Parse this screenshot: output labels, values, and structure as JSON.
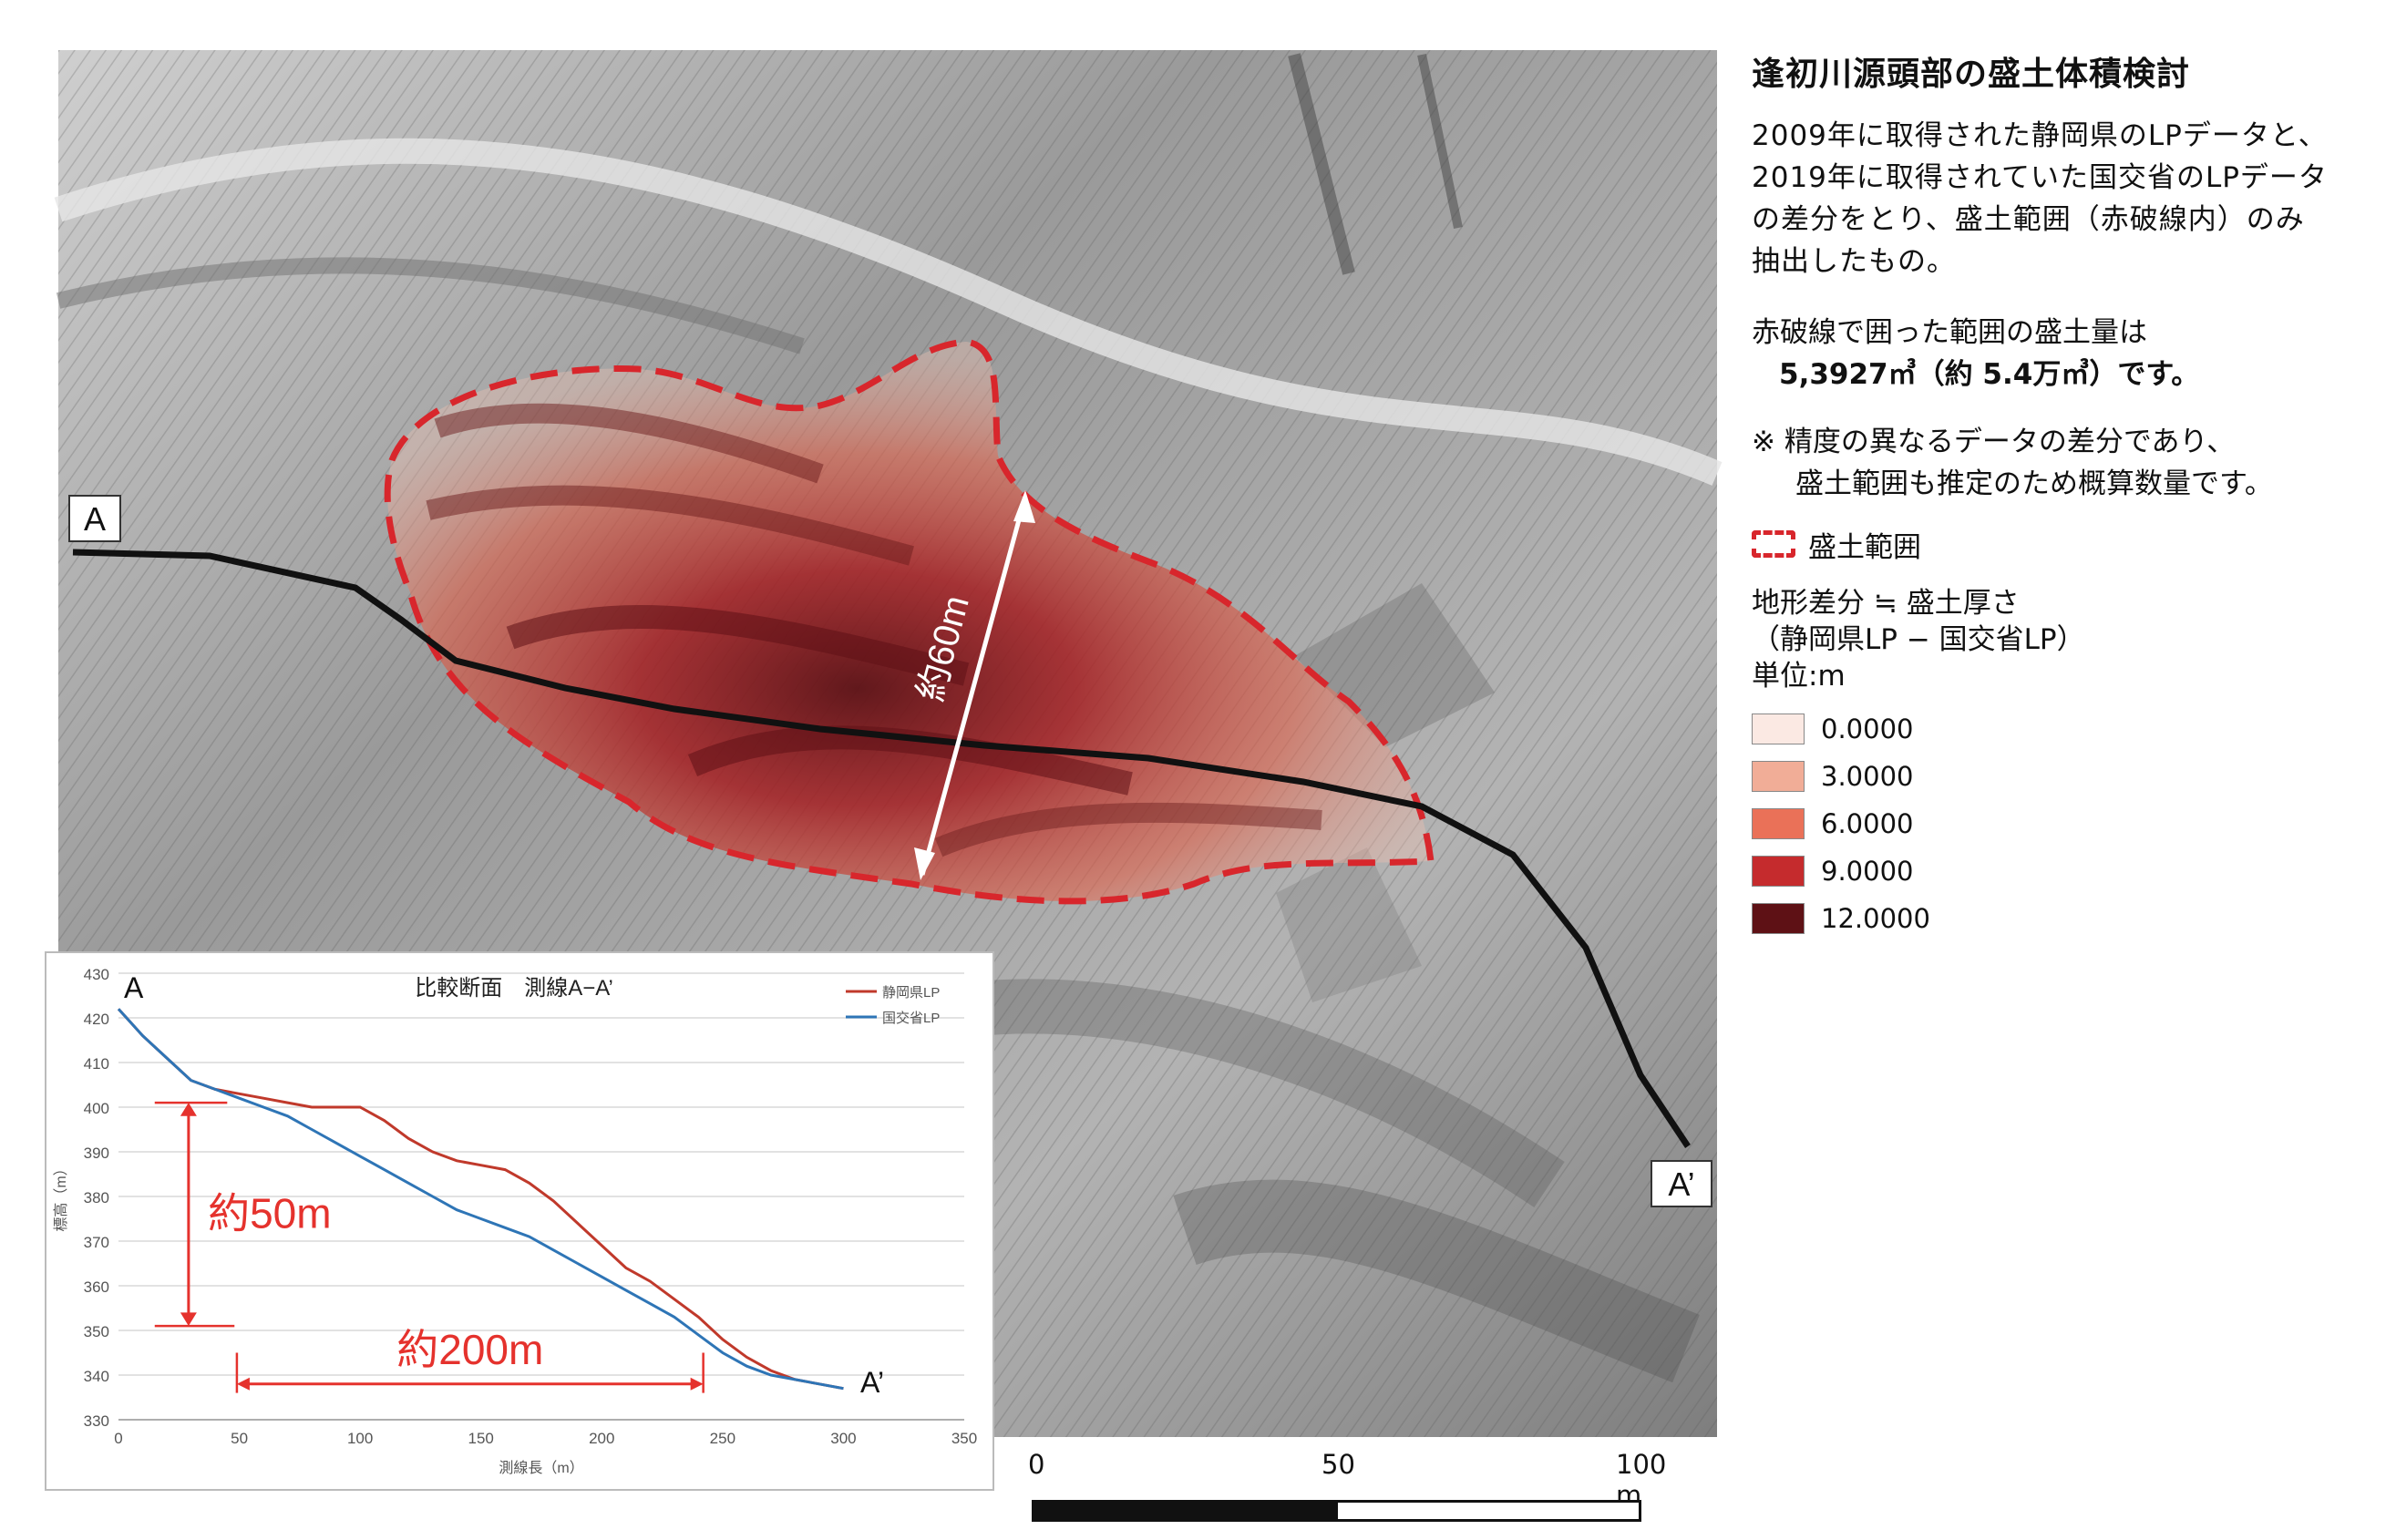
{
  "map": {
    "label_a": "A",
    "label_a_prime": "A’",
    "width_annotation": "約60m",
    "colors": {
      "extent_line": "#d8262c",
      "profile_line": "#111111"
    }
  },
  "info": {
    "title": "逢初川源頭部の盛土体積検討",
    "description_lines": [
      "2009年に取得された静岡県のLPデータと、",
      "2019年に取得されていた国交省のLPデータ",
      "の差分をとり、盛土範囲（赤破線内）のみ",
      "抽出したもの。"
    ],
    "volume_text": "赤破線で囲った範囲の盛土量は",
    "volume_value": "5,3927㎥（約 5.4万㎥）です。",
    "note_line1": "※ 精度の異なるデータの差分であり、",
    "note_line2": "盛土範囲も推定のため概算数量です。"
  },
  "legend": {
    "extent_label": "盛土範囲",
    "heading_line1": "地形差分 ≒ 盛土厚さ",
    "heading_line2": "（静岡県LP − 国交省LP）",
    "unit": "単位:m",
    "classes": [
      {
        "value": "0.0000",
        "color": "#fbe9e3"
      },
      {
        "value": "3.0000",
        "color": "#f1ad97"
      },
      {
        "value": "6.0000",
        "color": "#ea7158"
      },
      {
        "value": "9.0000",
        "color": "#c52b2d"
      },
      {
        "value": "12.0000",
        "color": "#5e1115"
      }
    ]
  },
  "scale_bar": {
    "ticks": [
      "0",
      "50",
      "100 m"
    ],
    "unit": "m"
  },
  "chart_data": {
    "type": "line",
    "title": "比較断面　測線A−A’",
    "xlabel": "測線長（m）",
    "ylabel": "標高（m）",
    "xlim": [
      0,
      350
    ],
    "ylim": [
      330,
      430
    ],
    "x_ticks": [
      "0",
      "50",
      "100",
      "150",
      "200",
      "250",
      "300",
      "350"
    ],
    "y_ticks": [
      "330",
      "340",
      "350",
      "360",
      "370",
      "380",
      "390",
      "400",
      "410",
      "420",
      "430"
    ],
    "legend_position": "top-right",
    "point_labels": {
      "start": "A",
      "end": "A’"
    },
    "annotations": {
      "height_diff": "約50m",
      "length": "約200m"
    },
    "series": [
      {
        "name": "静岡県LP",
        "color": "#c0392b",
        "x": [
          0,
          5,
          10,
          20,
          30,
          40,
          50,
          60,
          70,
          80,
          90,
          100,
          110,
          120,
          130,
          140,
          150,
          160,
          170,
          180,
          190,
          200,
          210,
          220,
          230,
          240,
          250,
          260,
          270,
          280,
          290,
          300
        ],
        "y": [
          422,
          419,
          416,
          411,
          406,
          404,
          403,
          402,
          401,
          400,
          400,
          400,
          397,
          393,
          390,
          388,
          387,
          386,
          383,
          379,
          374,
          369,
          364,
          361,
          357,
          353,
          348,
          344,
          341,
          339,
          338,
          337
        ]
      },
      {
        "name": "国交省LP",
        "color": "#2e75b6",
        "x": [
          0,
          5,
          10,
          20,
          30,
          40,
          50,
          60,
          70,
          80,
          90,
          100,
          110,
          120,
          130,
          140,
          150,
          160,
          170,
          180,
          190,
          200,
          210,
          220,
          230,
          240,
          250,
          260,
          270,
          280,
          290,
          300
        ],
        "y": [
          422,
          419,
          416,
          411,
          406,
          404,
          402,
          400,
          398,
          395,
          392,
          389,
          386,
          383,
          380,
          377,
          375,
          373,
          371,
          368,
          365,
          362,
          359,
          356,
          353,
          349,
          345,
          342,
          340,
          339,
          338,
          337
        ]
      }
    ]
  }
}
